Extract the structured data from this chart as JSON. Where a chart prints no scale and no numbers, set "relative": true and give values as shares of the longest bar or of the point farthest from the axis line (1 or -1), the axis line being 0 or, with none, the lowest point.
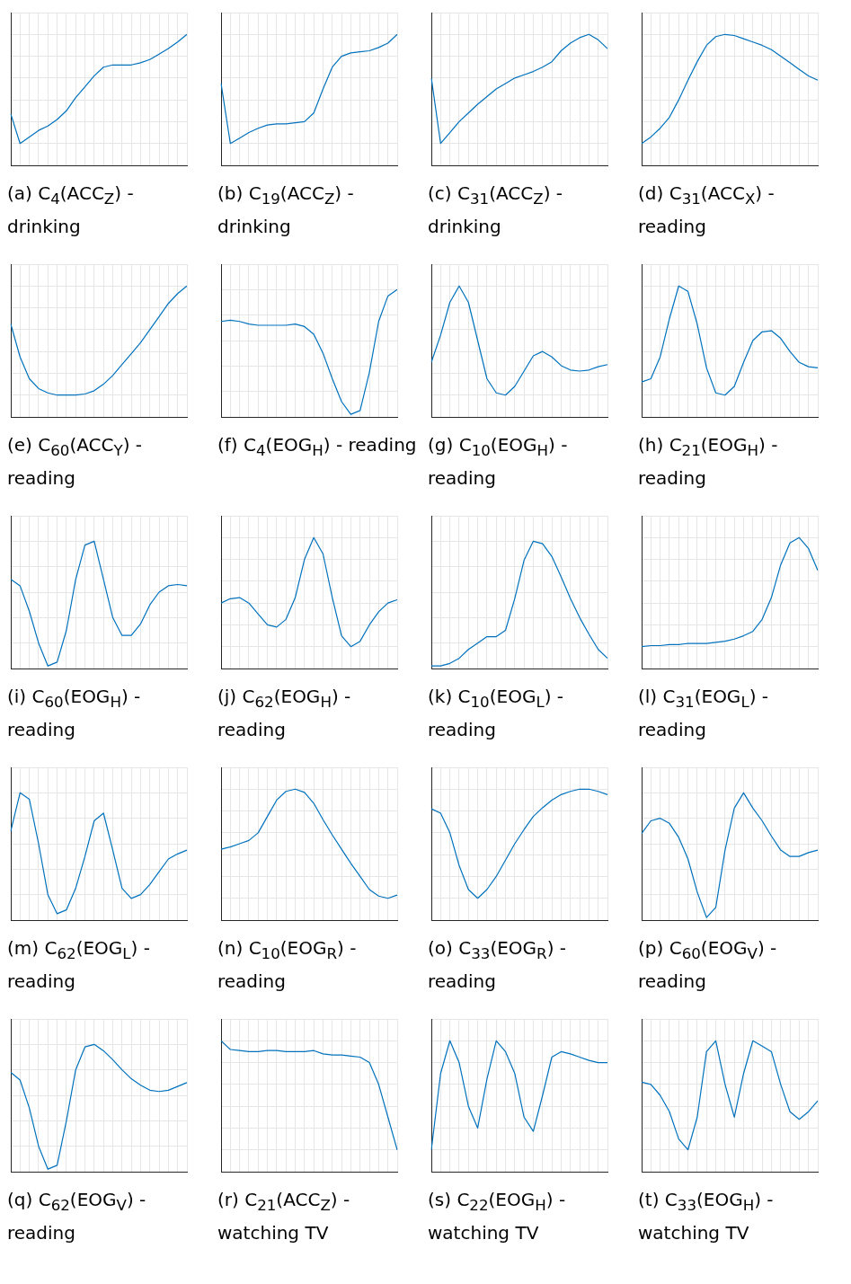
{
  "chart_data": [
    {
      "type": "line",
      "title": "(a) C$_{4}$(ACC$_{Z}$) - drinking",
      "relative": true,
      "grid": true,
      "tick_labels": false,
      "color": "#0072bd",
      "categories": [
        null,
        null,
        null,
        null,
        null,
        null,
        null,
        null,
        null,
        null,
        null,
        null,
        null,
        null,
        null,
        null,
        null,
        null,
        null,
        null
      ],
      "values": [
        0.27,
        0,
        0.06,
        0.12,
        0.16,
        0.22,
        0.3,
        0.42,
        0.52,
        0.62,
        0.7,
        0.72,
        0.72,
        0.72,
        0.74,
        0.77,
        0.82,
        0.87,
        0.93,
        1
      ]
    },
    {
      "type": "line",
      "title": "(b) C$_{19}$(ACC$_{Z}$) - drinking",
      "relative": true,
      "grid": true,
      "tick_labels": false,
      "color": "#0072bd",
      "categories": [
        null,
        null,
        null,
        null,
        null,
        null,
        null,
        null,
        null,
        null,
        null,
        null,
        null,
        null,
        null,
        null,
        null,
        null,
        null,
        null
      ],
      "values": [
        0.55,
        0,
        0.05,
        0.1,
        0.14,
        0.17,
        0.18,
        0.18,
        0.19,
        0.2,
        0.28,
        0.5,
        0.7,
        0.8,
        0.83,
        0.84,
        0.85,
        0.88,
        0.92,
        1
      ]
    },
    {
      "type": "line",
      "title": "(c) C$_{31}$(ACC$_{Z}$) - drinking",
      "relative": true,
      "grid": true,
      "tick_labels": false,
      "color": "#0072bd",
      "categories": [
        null,
        null,
        null,
        null,
        null,
        null,
        null,
        null,
        null,
        null,
        null,
        null,
        null,
        null,
        null,
        null,
        null,
        null,
        null,
        null
      ],
      "values": [
        0.6,
        0,
        0.1,
        0.2,
        0.28,
        0.36,
        0.43,
        0.5,
        0.55,
        0.6,
        0.63,
        0.66,
        0.7,
        0.75,
        0.85,
        0.92,
        0.97,
        1,
        0.95,
        0.87
      ]
    },
    {
      "type": "line",
      "title": "(d) C$_{31}$(ACC$_{X}$) - reading",
      "relative": true,
      "grid": true,
      "tick_labels": false,
      "color": "#0072bd",
      "categories": [
        null,
        null,
        null,
        null,
        null,
        null,
        null,
        null,
        null,
        null,
        null,
        null,
        null,
        null,
        null,
        null,
        null,
        null,
        null,
        null
      ],
      "values": [
        0,
        0.06,
        0.14,
        0.24,
        0.4,
        0.58,
        0.75,
        0.9,
        0.98,
        1,
        0.99,
        0.96,
        0.93,
        0.9,
        0.86,
        0.8,
        0.74,
        0.68,
        0.62,
        0.58
      ]
    },
    {
      "type": "line",
      "title": "(e) C$_{60}$(ACC$_{Y}$) - reading",
      "relative": true,
      "grid": true,
      "tick_labels": false,
      "color": "#0072bd",
      "categories": [
        null,
        null,
        null,
        null,
        null,
        null,
        null,
        null,
        null,
        null,
        null,
        null,
        null,
        null,
        null,
        null,
        null,
        null,
        null,
        null
      ],
      "values": [
        0.65,
        0.35,
        0.15,
        0.06,
        0.02,
        0,
        0,
        0,
        0.01,
        0.04,
        0.1,
        0.18,
        0.28,
        0.38,
        0.48,
        0.6,
        0.72,
        0.84,
        0.93,
        1
      ]
    },
    {
      "type": "line",
      "title": "(f) C$_{4}$(EOG$_{H}$) - reading",
      "relative": true,
      "grid": true,
      "tick_labels": false,
      "color": "#0072bd",
      "categories": [
        null,
        null,
        null,
        null,
        null,
        null,
        null,
        null,
        null,
        null,
        null,
        null,
        null,
        null,
        null,
        null,
        null,
        null,
        null,
        null
      ],
      "values": [
        0.75,
        0.76,
        0.75,
        0.73,
        0.72,
        0.72,
        0.72,
        0.72,
        0.73,
        0.71,
        0.65,
        0.5,
        0.3,
        0.12,
        0.02,
        0.05,
        0.35,
        0.75,
        0.95,
        1
      ]
    },
    {
      "type": "line",
      "title": "(g) C$_{10}$(EOG$_{H}$) - reading",
      "relative": true,
      "grid": true,
      "tick_labels": false,
      "color": "#0072bd",
      "categories": [
        null,
        null,
        null,
        null,
        null,
        null,
        null,
        null,
        null,
        null,
        null,
        null,
        null,
        null,
        null,
        null,
        null,
        null,
        null,
        null
      ],
      "values": [
        0.3,
        0.55,
        0.85,
        1,
        0.85,
        0.5,
        0.15,
        0.02,
        0,
        0.08,
        0.22,
        0.36,
        0.4,
        0.35,
        0.27,
        0.23,
        0.22,
        0.23,
        0.26,
        0.28
      ]
    },
    {
      "type": "line",
      "title": "(h) C$_{21}$(EOG$_{H}$) - reading",
      "relative": true,
      "grid": true,
      "tick_labels": false,
      "color": "#0072bd",
      "categories": [
        null,
        null,
        null,
        null,
        null,
        null,
        null,
        null,
        null,
        null,
        null,
        null,
        null,
        null,
        null,
        null,
        null,
        null,
        null,
        null
      ],
      "values": [
        0.12,
        0.15,
        0.35,
        0.7,
        1,
        0.95,
        0.65,
        0.25,
        0.02,
        0,
        0.08,
        0.3,
        0.5,
        0.58,
        0.59,
        0.52,
        0.4,
        0.3,
        0.26,
        0.25
      ]
    },
    {
      "type": "line",
      "title": "(i) C$_{60}$(EOG$_{H}$) - reading",
      "relative": true,
      "grid": true,
      "tick_labels": false,
      "color": "#0072bd",
      "categories": [
        null,
        null,
        null,
        null,
        null,
        null,
        null,
        null,
        null,
        null,
        null,
        null,
        null,
        null,
        null,
        null,
        null,
        null,
        null,
        null
      ],
      "values": [
        0.7,
        0.65,
        0.45,
        0.2,
        0.02,
        0.05,
        0.3,
        0.7,
        0.97,
        1,
        0.7,
        0.4,
        0.26,
        0.26,
        0.35,
        0.5,
        0.6,
        0.65,
        0.66,
        0.65
      ]
    },
    {
      "type": "line",
      "title": "(j) C$_{62}$(EOG$_{H}$) - reading",
      "relative": true,
      "grid": true,
      "tick_labels": false,
      "color": "#0072bd",
      "categories": [
        null,
        null,
        null,
        null,
        null,
        null,
        null,
        null,
        null,
        null,
        null,
        null,
        null,
        null,
        null,
        null,
        null,
        null,
        null,
        null
      ],
      "values": [
        0.4,
        0.44,
        0.45,
        0.4,
        0.3,
        0.2,
        0.18,
        0.25,
        0.45,
        0.8,
        1,
        0.85,
        0.45,
        0.1,
        0,
        0.05,
        0.2,
        0.32,
        0.4,
        0.43
      ]
    },
    {
      "type": "line",
      "title": "(k) C$_{10}$(EOG$_{L}$) - reading",
      "relative": true,
      "grid": true,
      "tick_labels": false,
      "color": "#0072bd",
      "categories": [
        null,
        null,
        null,
        null,
        null,
        null,
        null,
        null,
        null,
        null,
        null,
        null,
        null,
        null,
        null,
        null,
        null,
        null,
        null,
        null
      ],
      "values": [
        0.02,
        0.02,
        0.04,
        0.08,
        0.15,
        0.2,
        0.25,
        0.25,
        0.3,
        0.55,
        0.85,
        1,
        0.98,
        0.88,
        0.72,
        0.55,
        0.4,
        0.27,
        0.15,
        0.08
      ]
    },
    {
      "type": "line",
      "title": "(l) C$_{31}$(EOG$_{L}$) - reading",
      "relative": true,
      "grid": true,
      "tick_labels": false,
      "color": "#0072bd",
      "categories": [
        null,
        null,
        null,
        null,
        null,
        null,
        null,
        null,
        null,
        null,
        null,
        null,
        null,
        null,
        null,
        null,
        null,
        null,
        null,
        null
      ],
      "values": [
        0,
        0.01,
        0.01,
        0.02,
        0.02,
        0.03,
        0.03,
        0.03,
        0.04,
        0.05,
        0.07,
        0.1,
        0.14,
        0.25,
        0.45,
        0.75,
        0.95,
        1,
        0.9,
        0.7
      ]
    },
    {
      "type": "line",
      "title": "(m) C$_{62}$(EOG$_{L}$) - reading",
      "relative": true,
      "grid": true,
      "tick_labels": false,
      "color": "#0072bd",
      "categories": [
        null,
        null,
        null,
        null,
        null,
        null,
        null,
        null,
        null,
        null,
        null,
        null,
        null,
        null,
        null,
        null,
        null,
        null,
        null,
        null
      ],
      "values": [
        0.7,
        1,
        0.95,
        0.6,
        0.2,
        0.05,
        0.08,
        0.25,
        0.5,
        0.78,
        0.84,
        0.55,
        0.25,
        0.17,
        0.2,
        0.28,
        0.38,
        0.48,
        0.52,
        0.55
      ]
    },
    {
      "type": "line",
      "title": "(n) C$_{10}$(EOG$_{R}$) - reading",
      "relative": true,
      "grid": true,
      "tick_labels": false,
      "color": "#0072bd",
      "categories": [
        null,
        null,
        null,
        null,
        null,
        null,
        null,
        null,
        null,
        null,
        null,
        null,
        null,
        null,
        null,
        null,
        null,
        null,
        null,
        null
      ],
      "values": [
        0.45,
        0.47,
        0.5,
        0.53,
        0.6,
        0.75,
        0.9,
        0.98,
        1,
        0.97,
        0.87,
        0.72,
        0.58,
        0.45,
        0.32,
        0.2,
        0.08,
        0.02,
        0,
        0.03
      ]
    },
    {
      "type": "line",
      "title": "(o) C$_{33}$(EOG$_{R}$) - reading",
      "relative": true,
      "grid": true,
      "tick_labels": false,
      "color": "#0072bd",
      "categories": [
        null,
        null,
        null,
        null,
        null,
        null,
        null,
        null,
        null,
        null,
        null,
        null,
        null,
        null,
        null,
        null,
        null,
        null,
        null,
        null
      ],
      "values": [
        0.82,
        0.78,
        0.6,
        0.3,
        0.08,
        0,
        0.08,
        0.2,
        0.35,
        0.5,
        0.63,
        0.75,
        0.83,
        0.9,
        0.95,
        0.98,
        1,
        1,
        0.98,
        0.95
      ]
    },
    {
      "type": "line",
      "title": "(p) C$_{60}$(EOG$_{V}$) - reading",
      "relative": true,
      "grid": true,
      "tick_labels": false,
      "color": "#0072bd",
      "categories": [
        null,
        null,
        null,
        null,
        null,
        null,
        null,
        null,
        null,
        null,
        null,
        null,
        null,
        null,
        null,
        null,
        null,
        null,
        null,
        null
      ],
      "values": [
        0.68,
        0.78,
        0.8,
        0.76,
        0.65,
        0.48,
        0.22,
        0.02,
        0.1,
        0.55,
        0.88,
        1,
        0.88,
        0.78,
        0.66,
        0.55,
        0.5,
        0.5,
        0.53,
        0.55
      ]
    },
    {
      "type": "line",
      "title": "(q) C$_{62}$(EOG$_{V}$) - reading",
      "relative": true,
      "grid": true,
      "tick_labels": false,
      "color": "#0072bd",
      "categories": [
        null,
        null,
        null,
        null,
        null,
        null,
        null,
        null,
        null,
        null,
        null,
        null,
        null,
        null,
        null,
        null,
        null,
        null,
        null,
        null
      ],
      "values": [
        0.78,
        0.72,
        0.5,
        0.2,
        0.02,
        0.05,
        0.4,
        0.8,
        0.98,
        1,
        0.95,
        0.88,
        0.8,
        0.73,
        0.68,
        0.64,
        0.63,
        0.64,
        0.67,
        0.7
      ]
    },
    {
      "type": "line",
      "title": "(r) C$_{21}$(ACC$_{Z}$) - watching TV",
      "relative": true,
      "grid": true,
      "tick_labels": false,
      "color": "#0072bd",
      "categories": [
        null,
        null,
        null,
        null,
        null,
        null,
        null,
        null,
        null,
        null,
        null,
        null,
        null,
        null,
        null,
        null,
        null,
        null,
        null,
        null
      ],
      "values": [
        1,
        0.92,
        0.91,
        0.9,
        0.9,
        0.91,
        0.91,
        0.9,
        0.9,
        0.9,
        0.91,
        0.88,
        0.87,
        0.87,
        0.86,
        0.85,
        0.8,
        0.6,
        0.3,
        0
      ]
    },
    {
      "type": "line",
      "title": "(s) C$_{22}$(EOG$_{H}$) - watching TV",
      "relative": true,
      "grid": true,
      "tick_labels": false,
      "color": "#0072bd",
      "categories": [
        null,
        null,
        null,
        null,
        null,
        null,
        null,
        null,
        null,
        null,
        null,
        null,
        null,
        null,
        null,
        null,
        null,
        null,
        null,
        null
      ],
      "values": [
        0,
        0.7,
        1,
        0.8,
        0.4,
        0.2,
        0.65,
        1,
        0.9,
        0.7,
        0.3,
        0.17,
        0.5,
        0.85,
        0.9,
        0.88,
        0.85,
        0.82,
        0.8,
        0.8
      ]
    },
    {
      "type": "line",
      "title": "(t) C$_{33}$(EOG$_{H}$) - watching TV",
      "relative": true,
      "grid": true,
      "tick_labels": false,
      "color": "#0072bd",
      "categories": [
        null,
        null,
        null,
        null,
        null,
        null,
        null,
        null,
        null,
        null,
        null,
        null,
        null,
        null,
        null,
        null,
        null,
        null,
        null,
        null
      ],
      "values": [
        0.62,
        0.6,
        0.5,
        0.35,
        0.1,
        0,
        0.3,
        0.9,
        1,
        0.6,
        0.3,
        0.7,
        1,
        0.95,
        0.9,
        0.6,
        0.35,
        0.28,
        0.35,
        0.45
      ]
    }
  ]
}
